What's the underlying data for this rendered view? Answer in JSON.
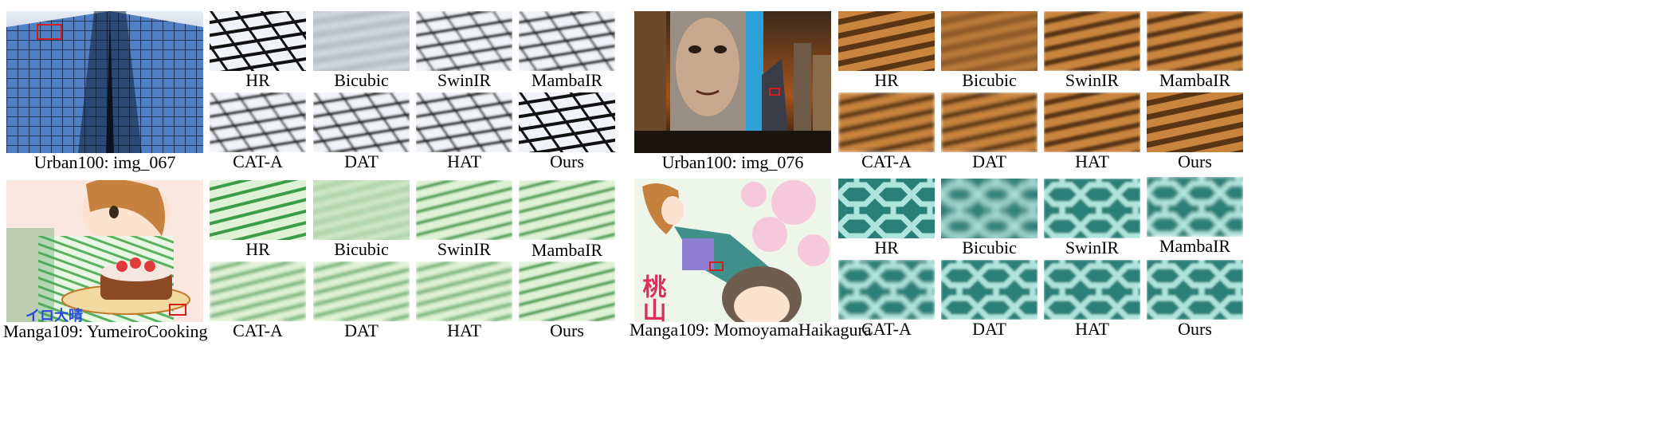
{
  "panels": [
    {
      "full_caption": "Urban100: img_067",
      "crop_labels": [
        "HR",
        "Bicubic",
        "SwinIR",
        "MambaIR",
        "CAT-A",
        "DAT",
        "HAT",
        "Ours"
      ]
    },
    {
      "full_caption": "Urban100: img_076",
      "crop_labels": [
        "HR",
        "Bicubic",
        "SwinIR",
        "MambaIR",
        "CAT-A",
        "DAT",
        "HAT",
        "Ours"
      ]
    },
    {
      "full_caption": "Manga109: YumeiroCooking",
      "crop_labels": [
        "HR",
        "Bicubic",
        "SwinIR",
        "MambaIR",
        "CAT-A",
        "DAT",
        "HAT",
        "Ours"
      ],
      "overlay_text": "イロ大晴"
    },
    {
      "full_caption": "Manga109: MomoyamaHaikagura",
      "crop_labels": [
        "HR",
        "Bicubic",
        "SwinIR",
        "MambaIR",
        "CAT-A",
        "DAT",
        "HAT",
        "Ours"
      ],
      "overlay_text": "桃山灰"
    }
  ],
  "colors": {
    "roi_box": "#d21e1e",
    "caption": "#000000"
  }
}
